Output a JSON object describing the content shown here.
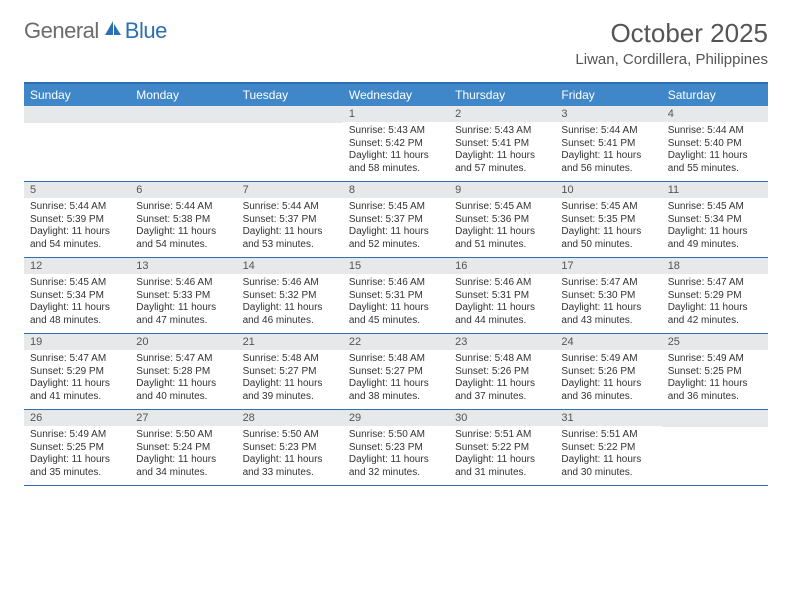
{
  "logo": {
    "general": "General",
    "blue": "Blue"
  },
  "title": "October 2025",
  "location": "Liwan, Cordillera, Philippines",
  "colors": {
    "header_bg": "#3f87c8",
    "border": "#2d6fb5",
    "daynum_bg": "#e7e8e9",
    "text_gray": "#555555"
  },
  "weekdays": [
    "Sunday",
    "Monday",
    "Tuesday",
    "Wednesday",
    "Thursday",
    "Friday",
    "Saturday"
  ],
  "weeks": [
    [
      null,
      null,
      null,
      {
        "n": "1",
        "sunrise": "5:43 AM",
        "sunset": "5:42 PM",
        "dlh": "11",
        "dlm": "58"
      },
      {
        "n": "2",
        "sunrise": "5:43 AM",
        "sunset": "5:41 PM",
        "dlh": "11",
        "dlm": "57"
      },
      {
        "n": "3",
        "sunrise": "5:44 AM",
        "sunset": "5:41 PM",
        "dlh": "11",
        "dlm": "56"
      },
      {
        "n": "4",
        "sunrise": "5:44 AM",
        "sunset": "5:40 PM",
        "dlh": "11",
        "dlm": "55"
      }
    ],
    [
      {
        "n": "5",
        "sunrise": "5:44 AM",
        "sunset": "5:39 PM",
        "dlh": "11",
        "dlm": "54"
      },
      {
        "n": "6",
        "sunrise": "5:44 AM",
        "sunset": "5:38 PM",
        "dlh": "11",
        "dlm": "54"
      },
      {
        "n": "7",
        "sunrise": "5:44 AM",
        "sunset": "5:37 PM",
        "dlh": "11",
        "dlm": "53"
      },
      {
        "n": "8",
        "sunrise": "5:45 AM",
        "sunset": "5:37 PM",
        "dlh": "11",
        "dlm": "52"
      },
      {
        "n": "9",
        "sunrise": "5:45 AM",
        "sunset": "5:36 PM",
        "dlh": "11",
        "dlm": "51"
      },
      {
        "n": "10",
        "sunrise": "5:45 AM",
        "sunset": "5:35 PM",
        "dlh": "11",
        "dlm": "50"
      },
      {
        "n": "11",
        "sunrise": "5:45 AM",
        "sunset": "5:34 PM",
        "dlh": "11",
        "dlm": "49"
      }
    ],
    [
      {
        "n": "12",
        "sunrise": "5:45 AM",
        "sunset": "5:34 PM",
        "dlh": "11",
        "dlm": "48"
      },
      {
        "n": "13",
        "sunrise": "5:46 AM",
        "sunset": "5:33 PM",
        "dlh": "11",
        "dlm": "47"
      },
      {
        "n": "14",
        "sunrise": "5:46 AM",
        "sunset": "5:32 PM",
        "dlh": "11",
        "dlm": "46"
      },
      {
        "n": "15",
        "sunrise": "5:46 AM",
        "sunset": "5:31 PM",
        "dlh": "11",
        "dlm": "45"
      },
      {
        "n": "16",
        "sunrise": "5:46 AM",
        "sunset": "5:31 PM",
        "dlh": "11",
        "dlm": "44"
      },
      {
        "n": "17",
        "sunrise": "5:47 AM",
        "sunset": "5:30 PM",
        "dlh": "11",
        "dlm": "43"
      },
      {
        "n": "18",
        "sunrise": "5:47 AM",
        "sunset": "5:29 PM",
        "dlh": "11",
        "dlm": "42"
      }
    ],
    [
      {
        "n": "19",
        "sunrise": "5:47 AM",
        "sunset": "5:29 PM",
        "dlh": "11",
        "dlm": "41"
      },
      {
        "n": "20",
        "sunrise": "5:47 AM",
        "sunset": "5:28 PM",
        "dlh": "11",
        "dlm": "40"
      },
      {
        "n": "21",
        "sunrise": "5:48 AM",
        "sunset": "5:27 PM",
        "dlh": "11",
        "dlm": "39"
      },
      {
        "n": "22",
        "sunrise": "5:48 AM",
        "sunset": "5:27 PM",
        "dlh": "11",
        "dlm": "38"
      },
      {
        "n": "23",
        "sunrise": "5:48 AM",
        "sunset": "5:26 PM",
        "dlh": "11",
        "dlm": "37"
      },
      {
        "n": "24",
        "sunrise": "5:49 AM",
        "sunset": "5:26 PM",
        "dlh": "11",
        "dlm": "36"
      },
      {
        "n": "25",
        "sunrise": "5:49 AM",
        "sunset": "5:25 PM",
        "dlh": "11",
        "dlm": "36"
      }
    ],
    [
      {
        "n": "26",
        "sunrise": "5:49 AM",
        "sunset": "5:25 PM",
        "dlh": "11",
        "dlm": "35"
      },
      {
        "n": "27",
        "sunrise": "5:50 AM",
        "sunset": "5:24 PM",
        "dlh": "11",
        "dlm": "34"
      },
      {
        "n": "28",
        "sunrise": "5:50 AM",
        "sunset": "5:23 PM",
        "dlh": "11",
        "dlm": "33"
      },
      {
        "n": "29",
        "sunrise": "5:50 AM",
        "sunset": "5:23 PM",
        "dlh": "11",
        "dlm": "32"
      },
      {
        "n": "30",
        "sunrise": "5:51 AM",
        "sunset": "5:22 PM",
        "dlh": "11",
        "dlm": "31"
      },
      {
        "n": "31",
        "sunrise": "5:51 AM",
        "sunset": "5:22 PM",
        "dlh": "11",
        "dlm": "30"
      },
      null
    ]
  ],
  "labels": {
    "sunrise": "Sunrise:",
    "sunset": "Sunset:",
    "daylight": "Daylight:",
    "hours_word": "hours",
    "and_word": "and",
    "minutes_word": "minutes."
  }
}
